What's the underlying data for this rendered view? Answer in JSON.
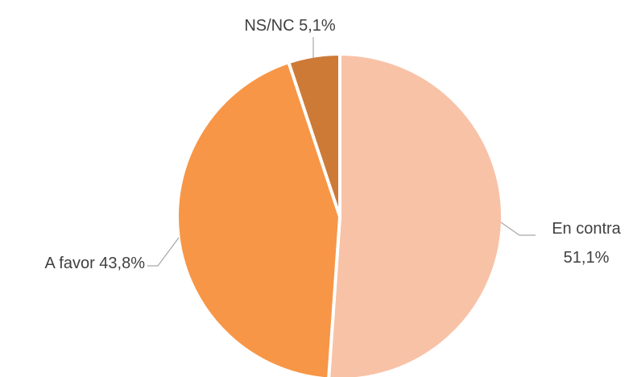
{
  "chart_data": {
    "type": "pie",
    "slices": [
      {
        "label": "En contra",
        "value": 51.1,
        "display": "51,1%",
        "color": "#F8C2A7"
      },
      {
        "label": "A favor",
        "value": 43.8,
        "display": "43,8%",
        "color": "#F79646"
      },
      {
        "label": "NS/NC",
        "value": 5.1,
        "display": "5,1%",
        "color": "#CD7A37"
      }
    ],
    "start_angle_deg": 0,
    "direction": "clockwise",
    "legend": "none",
    "data_labels": "outside-with-leader-lines"
  },
  "labels": {
    "en_contra_line1": "En contra",
    "en_contra_line2": "51,1%",
    "a_favor": "A favor 43,8%",
    "nsnc": "NS/NC 5,1%"
  }
}
